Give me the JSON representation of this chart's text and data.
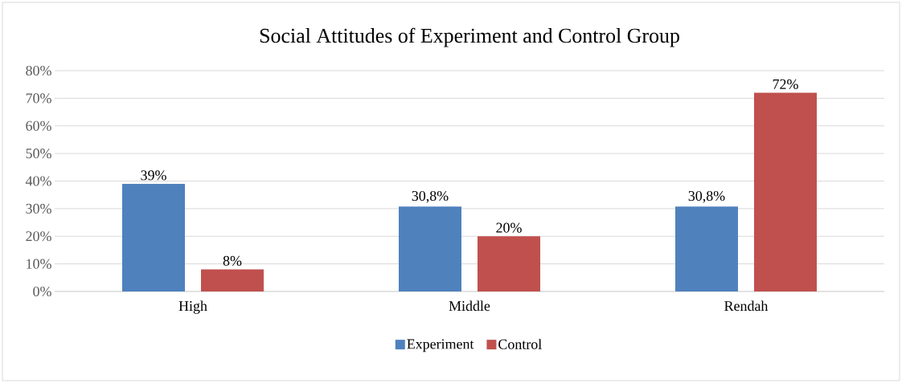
{
  "chart_data": {
    "type": "bar",
    "title": "Social Attitudes of Experiment and Control Group",
    "categories": [
      "High",
      "Middle",
      "Rendah"
    ],
    "series": [
      {
        "name": "Experiment",
        "color": "#4f81bd",
        "values": [
          39,
          30.8,
          30.8
        ],
        "value_labels": [
          "39%",
          "30,8%",
          "30,8%"
        ]
      },
      {
        "name": "Control",
        "color": "#c0504d",
        "values": [
          8,
          20,
          72
        ],
        "value_labels": [
          "8%",
          "20%",
          "72%"
        ]
      }
    ],
    "ylim": [
      0,
      80
    ],
    "yticks": [
      {
        "value": 0,
        "label": "0%"
      },
      {
        "value": 10,
        "label": "10%"
      },
      {
        "value": 20,
        "label": "20%"
      },
      {
        "value": 30,
        "label": "30%"
      },
      {
        "value": 40,
        "label": "40%"
      },
      {
        "value": 50,
        "label": "50%"
      },
      {
        "value": 60,
        "label": "60%"
      },
      {
        "value": 70,
        "label": "70%"
      },
      {
        "value": 80,
        "label": "80%"
      }
    ],
    "grid": "y",
    "legend": "bottom"
  }
}
